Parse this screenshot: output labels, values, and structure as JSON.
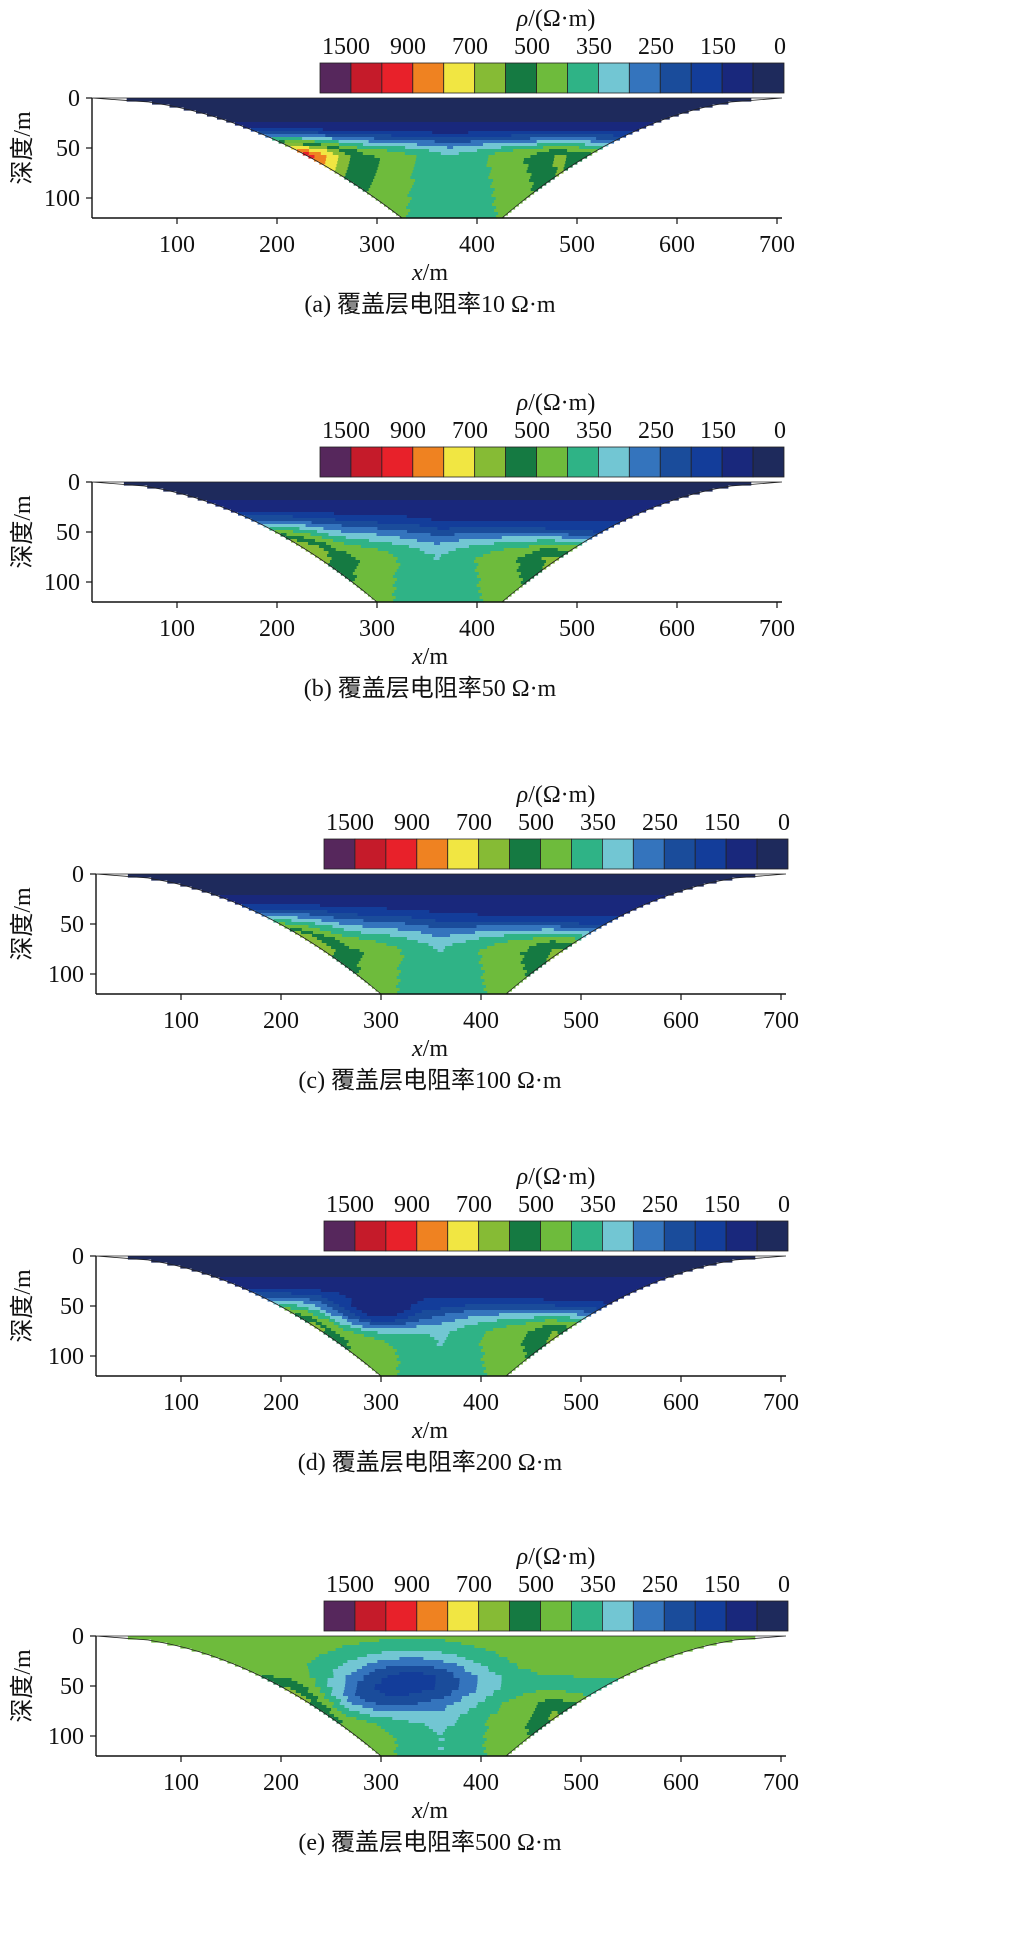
{
  "chart_data": [
    {
      "type": "heatmap",
      "caption": "(a) 覆盖层电阻率10 Ω·m",
      "xlabel_var": "x",
      "xlabel_unit": "/m",
      "ylabel": "深度/m",
      "colorbar_label_var": "ρ",
      "colorbar_label_unit": "/(Ω·m)",
      "colorbar_ticks": [
        "1500",
        "900",
        "700",
        "500",
        "350",
        "250",
        "150",
        "0"
      ],
      "x_ticks": [
        100,
        200,
        300,
        400,
        500,
        600,
        700
      ],
      "y_ticks": [
        0,
        50,
        100
      ],
      "xlim": [
        15,
        705
      ],
      "ylim": [
        0,
        120
      ],
      "surface_resistivity_ohm_m": 10,
      "profile_section": {
        "left_x": 15,
        "right_x": 705,
        "bottom_left_x": 325,
        "bottom_right_x": 425,
        "max_depth_m": 120
      }
    },
    {
      "type": "heatmap",
      "caption": "(b) 覆盖层电阻率50 Ω·m",
      "xlabel_var": "x",
      "xlabel_unit": "/m",
      "ylabel": "深度/m",
      "colorbar_label_var": "ρ",
      "colorbar_label_unit": "/(Ω·m)",
      "colorbar_ticks": [
        "1500",
        "900",
        "700",
        "500",
        "350",
        "250",
        "150",
        "0"
      ],
      "x_ticks": [
        100,
        200,
        300,
        400,
        500,
        600,
        700
      ],
      "y_ticks": [
        0,
        50,
        100
      ],
      "xlim": [
        15,
        705
      ],
      "ylim": [
        0,
        120
      ],
      "surface_resistivity_ohm_m": 50,
      "profile_section": {
        "left_x": 15,
        "right_x": 705,
        "bottom_left_x": 300,
        "bottom_right_x": 425,
        "max_depth_m": 120
      }
    },
    {
      "type": "heatmap",
      "caption": "(c) 覆盖层电阻率100 Ω·m",
      "xlabel_var": "x",
      "xlabel_unit": "/m",
      "ylabel": "深度/m",
      "colorbar_label_var": "ρ",
      "colorbar_label_unit": "/(Ω·m)",
      "colorbar_ticks": [
        "1500",
        "900",
        "700",
        "500",
        "350",
        "250",
        "150",
        "0"
      ],
      "x_ticks": [
        100,
        200,
        300,
        400,
        500,
        600,
        700
      ],
      "y_ticks": [
        0,
        50,
        100
      ],
      "xlim": [
        15,
        705
      ],
      "ylim": [
        0,
        120
      ],
      "surface_resistivity_ohm_m": 100,
      "profile_section": {
        "left_x": 15,
        "right_x": 705,
        "bottom_left_x": 300,
        "bottom_right_x": 425,
        "max_depth_m": 120
      }
    },
    {
      "type": "heatmap",
      "caption": "(d) 覆盖层电阻率200 Ω·m",
      "xlabel_var": "x",
      "xlabel_unit": "/m",
      "ylabel": "深度/m",
      "colorbar_label_var": "ρ",
      "colorbar_label_unit": "/(Ω·m)",
      "colorbar_ticks": [
        "1500",
        "900",
        "700",
        "500",
        "350",
        "250",
        "150",
        "0"
      ],
      "x_ticks": [
        100,
        200,
        300,
        400,
        500,
        600,
        700
      ],
      "y_ticks": [
        0,
        50,
        100
      ],
      "xlim": [
        15,
        705
      ],
      "ylim": [
        0,
        120
      ],
      "surface_resistivity_ohm_m": 200,
      "profile_section": {
        "left_x": 15,
        "right_x": 705,
        "bottom_left_x": 300,
        "bottom_right_x": 425,
        "max_depth_m": 120
      }
    },
    {
      "type": "heatmap",
      "caption": "(e) 覆盖层电阻率500 Ω·m",
      "xlabel_var": "x",
      "xlabel_unit": "/m",
      "ylabel": "深度/m",
      "colorbar_label_var": "ρ",
      "colorbar_label_unit": "/(Ω·m)",
      "colorbar_ticks": [
        "1500",
        "900",
        "700",
        "500",
        "350",
        "250",
        "150",
        "0"
      ],
      "x_ticks": [
        100,
        200,
        300,
        400,
        500,
        600,
        700
      ],
      "y_ticks": [
        0,
        50,
        100
      ],
      "xlim": [
        15,
        705
      ],
      "ylim": [
        0,
        120
      ],
      "surface_resistivity_ohm_m": 500,
      "profile_section": {
        "left_x": 15,
        "right_x": 705,
        "bottom_left_x": 300,
        "bottom_right_x": 425,
        "max_depth_m": 120
      }
    }
  ],
  "colorbar_colors": [
    "#56275c",
    "#c51b2a",
    "#e8212a",
    "#ef8221",
    "#f1e642",
    "#86bb35",
    "#157a42",
    "#6ebb3c",
    "#2fb386",
    "#72c6d3",
    "#3474bd",
    "#1a4c9b",
    "#133d9a",
    "#19287c",
    "#1e2a5c"
  ]
}
